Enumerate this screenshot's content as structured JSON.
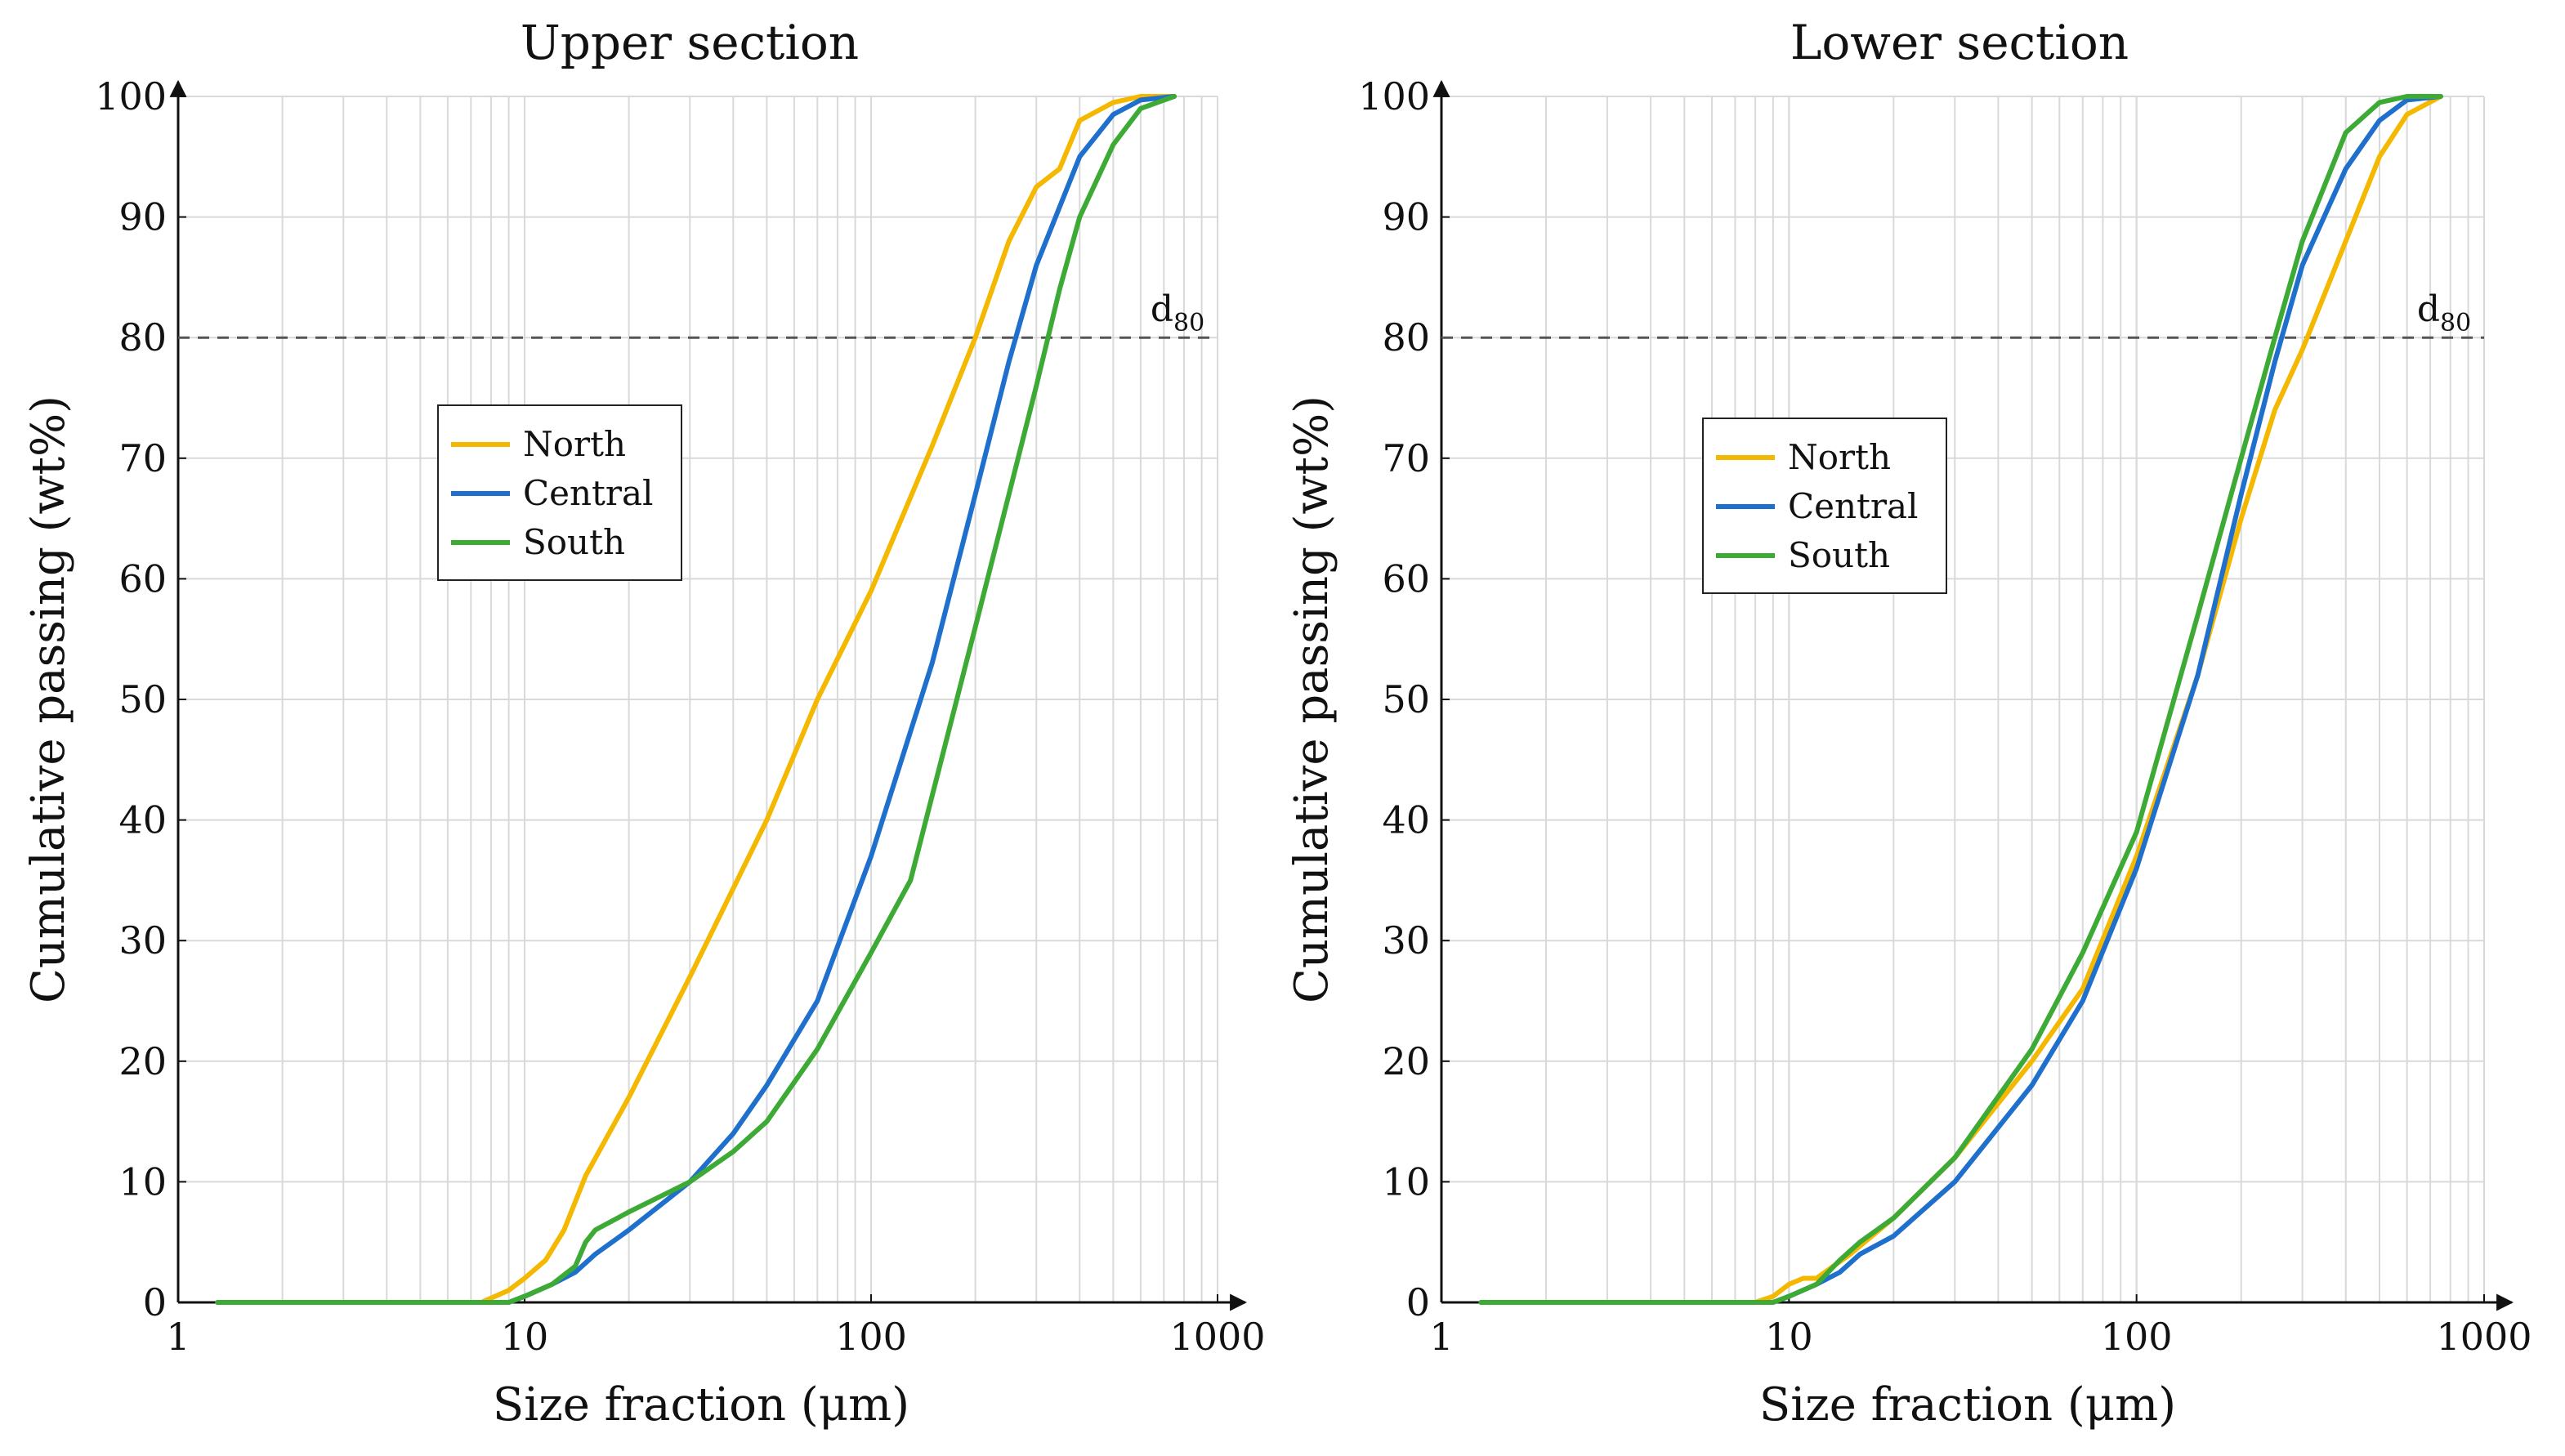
{
  "chart_data": [
    {
      "type": "line",
      "title": "Upper section",
      "xlabel": "Size fraction (μm)",
      "ylabel": "Cumulative passing (wt%)",
      "xscale": "log",
      "xlim": [
        1,
        1000
      ],
      "ylim": [
        0,
        100
      ],
      "xticks": [
        "1",
        "10",
        "100",
        "1000"
      ],
      "yticks": [
        "0",
        "10",
        "20",
        "30",
        "40",
        "50",
        "60",
        "70",
        "80",
        "90",
        "100"
      ],
      "grid": true,
      "legend_position": "upper-left",
      "reference_line": {
        "y": 80,
        "label_base": "d",
        "label_sub": "80",
        "style": "dashed"
      },
      "series": [
        {
          "name": "North",
          "color": "#F5B800",
          "x": [
            1.3,
            7.5,
            9,
            10,
            11.5,
            13,
            15,
            20,
            30,
            50,
            70,
            100,
            150,
            200,
            250,
            300,
            350,
            400,
            500,
            600,
            750
          ],
          "y": [
            0,
            0,
            1,
            2,
            3.5,
            6,
            10.5,
            17,
            27,
            40,
            50,
            59,
            71,
            80,
            88,
            92.5,
            94,
            98,
            99.5,
            100,
            100
          ]
        },
        {
          "name": "Central",
          "color": "#1F6FCC",
          "x": [
            1.3,
            9,
            10,
            12,
            14,
            16,
            20,
            30,
            40,
            50,
            70,
            100,
            150,
            200,
            250,
            300,
            400,
            500,
            600,
            750
          ],
          "y": [
            0,
            0,
            0.5,
            1.5,
            2.5,
            4,
            6,
            10,
            14,
            18,
            25,
            37,
            53,
            67,
            78,
            86,
            95,
            98.5,
            99.7,
            100
          ]
        },
        {
          "name": "South",
          "color": "#3DAA35",
          "x": [
            1.3,
            9,
            10,
            12,
            14,
            15,
            16,
            20,
            30,
            40,
            50,
            70,
            100,
            130,
            150,
            200,
            250,
            300,
            350,
            400,
            500,
            600,
            750
          ],
          "y": [
            0,
            0,
            0.5,
            1.5,
            3,
            5,
            6,
            7.5,
            10,
            12.5,
            15,
            21,
            29,
            35,
            42,
            56,
            67,
            76,
            84,
            90,
            96,
            99,
            100
          ]
        }
      ]
    },
    {
      "type": "line",
      "title": "Lower section",
      "xlabel": "Size fraction (μm)",
      "ylabel": "Cumulative passing (wt%)",
      "xscale": "log",
      "xlim": [
        1,
        1000
      ],
      "ylim": [
        0,
        100
      ],
      "xticks": [
        "1",
        "10",
        "100",
        "1000"
      ],
      "yticks": [
        "0",
        "10",
        "20",
        "30",
        "40",
        "50",
        "60",
        "70",
        "80",
        "90",
        "100"
      ],
      "grid": true,
      "legend_position": "upper-left",
      "reference_line": {
        "y": 80,
        "label_base": "d",
        "label_sub": "80",
        "style": "dashed"
      },
      "series": [
        {
          "name": "North",
          "color": "#F5B800",
          "x": [
            1.3,
            8,
            9,
            10,
            11,
            12,
            15,
            20,
            30,
            50,
            70,
            100,
            150,
            200,
            250,
            300,
            400,
            500,
            600,
            750
          ],
          "y": [
            0,
            0,
            0.5,
            1.5,
            2,
            2,
            4,
            7,
            12,
            20,
            26,
            37,
            52,
            65,
            74,
            79,
            88,
            95,
            98.5,
            100
          ]
        },
        {
          "name": "Central",
          "color": "#1F6FCC",
          "x": [
            1.3,
            9,
            10,
            12,
            14,
            16,
            20,
            30,
            50,
            70,
            100,
            150,
            200,
            250,
            300,
            400,
            500,
            600,
            750
          ],
          "y": [
            0,
            0,
            0.5,
            1.5,
            2.5,
            4,
            5.5,
            10,
            18,
            25,
            36,
            52,
            67,
            78,
            86,
            94,
            98,
            99.7,
            100
          ]
        },
        {
          "name": "South",
          "color": "#3DAA35",
          "x": [
            1.3,
            9,
            10,
            12,
            14,
            16,
            20,
            30,
            50,
            70,
            100,
            150,
            200,
            250,
            300,
            400,
            500,
            600,
            750
          ],
          "y": [
            0,
            0,
            0.5,
            1.5,
            3.5,
            5,
            7,
            12,
            21,
            29,
            39,
            57,
            70,
            80,
            88,
            97,
            99.5,
            100,
            100
          ]
        }
      ]
    }
  ]
}
